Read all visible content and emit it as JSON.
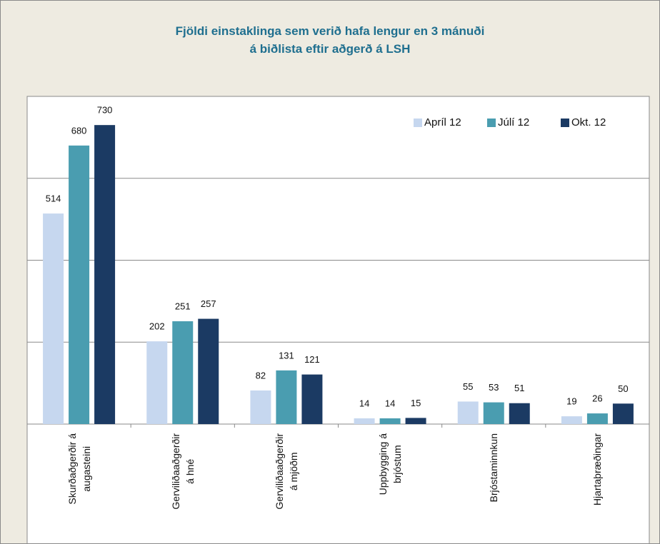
{
  "chart_data": {
    "type": "bar",
    "title": "Fjöldi einstaklinga sem verið hafa lengur en 3 mánuði\ná biðlista eftir aðgerð á LSH",
    "categories": [
      "Skurðaðgerðir á\naugasteini",
      "Gerviliðaaðgerðir\ná hné",
      "Gerviliðaaðgerðir\ná mjöðm",
      "Uppbygging á\nbrjóstum",
      "Brjóstaminnkun",
      "Hjartaþræðingar"
    ],
    "series": [
      {
        "name": "Apríl 12",
        "color": "#c6d7ef",
        "values": [
          514,
          202,
          82,
          14,
          55,
          19
        ]
      },
      {
        "name": "Júlí 12",
        "color": "#4a9db0",
        "values": [
          680,
          251,
          131,
          14,
          53,
          26
        ]
      },
      {
        "name": "Okt. 12",
        "color": "#1b3a63",
        "values": [
          730,
          257,
          121,
          15,
          51,
          50
        ]
      }
    ],
    "ylim": [
      0,
      800
    ],
    "yticks": [
      0,
      200,
      400,
      600,
      800
    ],
    "grid": true,
    "legend": "top-right"
  }
}
